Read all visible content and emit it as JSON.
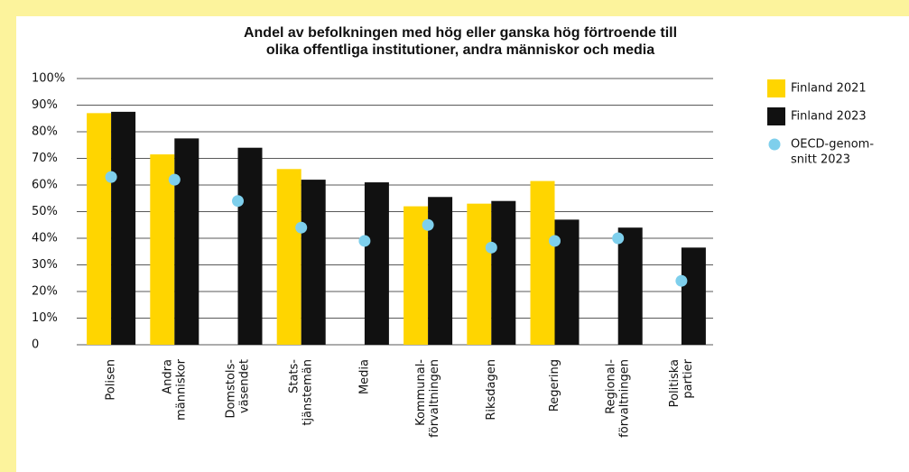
{
  "chart_data": {
    "type": "bar",
    "title": [
      "Andel av befolkningen med hög eller ganska hög förtroende till",
      "olika offentliga institutioner, andra människor och media"
    ],
    "categories": [
      [
        "Polisen"
      ],
      [
        "Andra",
        "människor"
      ],
      [
        "Domstols-",
        "väsendet"
      ],
      [
        "Stats-",
        "tjänstemän"
      ],
      [
        "Media"
      ],
      [
        "Kommunal-",
        "förvaltningen"
      ],
      [
        "Riksdagen"
      ],
      [
        "Regering"
      ],
      [
        "Regional-",
        "förvaltningen"
      ],
      [
        "Politiska",
        "partier"
      ]
    ],
    "series": [
      {
        "name": [
          "Finland 2021"
        ],
        "color": "#ffd500",
        "kind": "bar",
        "values": [
          87,
          71.5,
          null,
          66,
          null,
          52,
          53,
          61.5,
          null,
          null
        ]
      },
      {
        "name": [
          "Finland 2023"
        ],
        "color": "#111111",
        "kind": "bar",
        "values": [
          87.5,
          77.5,
          74,
          62,
          61,
          55.5,
          54,
          47,
          44,
          36.5
        ]
      },
      {
        "name": [
          "OECD-genom-",
          "snitt 2023"
        ],
        "color": "#7ecfec",
        "kind": "dot",
        "values": [
          63,
          62,
          54,
          44,
          39,
          45,
          36.5,
          39,
          40,
          24
        ]
      }
    ],
    "ylim": [
      0,
      100
    ],
    "yticks": [
      0,
      {
        "value": 10,
        "label": "10%"
      },
      {
        "value": 20,
        "label": "20%"
      },
      {
        "value": 30,
        "label": "30%"
      },
      {
        "value": 40,
        "label": "40%"
      },
      {
        "value": 50,
        "label": "50%"
      },
      {
        "value": 60,
        "label": "60%"
      },
      {
        "value": 70,
        "label": "70%"
      },
      {
        "value": 80,
        "label": "80%"
      },
      {
        "value": 90,
        "label": "90%"
      },
      {
        "value": 100,
        "label": "100%"
      }
    ],
    "grid": true,
    "legend": "right"
  }
}
